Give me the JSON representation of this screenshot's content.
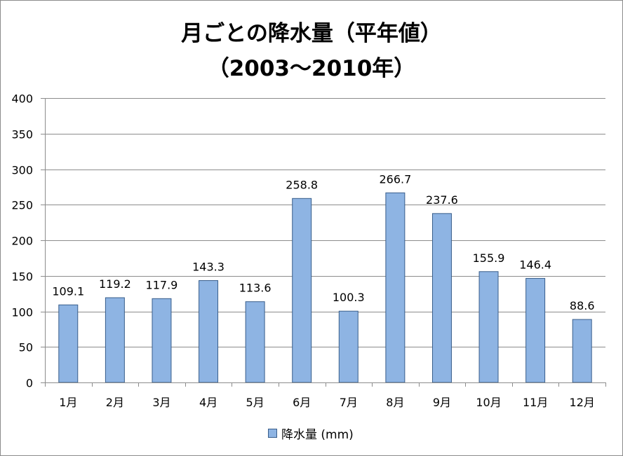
{
  "chart_data": {
    "type": "bar",
    "title": "月ごとの降水量（平年値）",
    "subtitle": "（2003～2010年）",
    "categories": [
      "1月",
      "2月",
      "3月",
      "4月",
      "5月",
      "6月",
      "7月",
      "8月",
      "9月",
      "10月",
      "11月",
      "12月"
    ],
    "series": [
      {
        "name": "降水量 (mm)",
        "values": [
          109.1,
          119.2,
          117.9,
          143.3,
          113.6,
          258.8,
          100.3,
          266.7,
          237.6,
          155.9,
          146.4,
          88.6
        ]
      }
    ],
    "value_labels": [
      "109.1",
      "119.2",
      "117.9",
      "143.3",
      "113.6",
      "258.8",
      "100.3",
      "266.7",
      "237.6",
      "155.9",
      "146.4",
      "88.6"
    ],
    "ylim": [
      0,
      400
    ],
    "yticks": [
      0,
      50,
      100,
      150,
      200,
      250,
      300,
      350,
      400
    ],
    "ytick_labels": [
      "0",
      "50",
      "100",
      "150",
      "200",
      "250",
      "300",
      "350",
      "400"
    ],
    "xlabel": "",
    "ylabel": "",
    "grid": true,
    "legend_position": "bottom",
    "bar_color": "#8eb4e3",
    "bar_edge_color": "#385d8a"
  }
}
